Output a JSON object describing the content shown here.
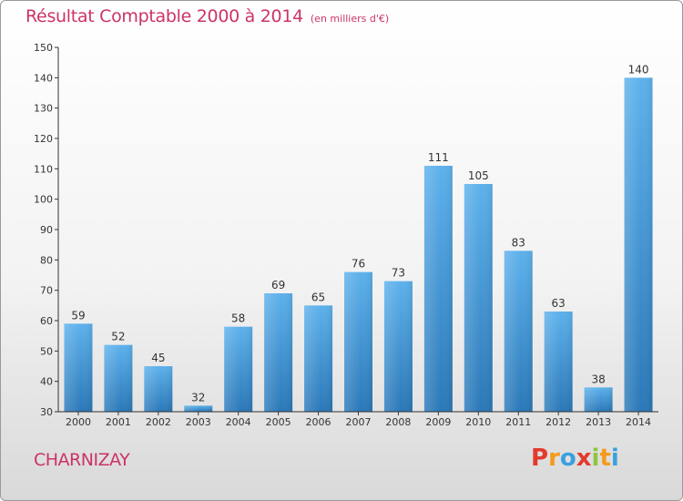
{
  "title": "Résultat Comptable 2000 à 2014",
  "subtitle": "(en milliers d'€)",
  "commune": "CHARNIZAY",
  "logo": {
    "text": "Proxiti",
    "letters": [
      {
        "ch": "P",
        "color": "#e23b2e"
      },
      {
        "ch": "r",
        "color": "#f59a1b"
      },
      {
        "ch": "o",
        "color": "#3aa0e0"
      },
      {
        "ch": "x",
        "color": "#e23b2e"
      },
      {
        "ch": "i",
        "color": "#8cc63f"
      },
      {
        "ch": "t",
        "color": "#f59a1b"
      },
      {
        "ch": "i",
        "color": "#3aa0e0"
      }
    ]
  },
  "colors": {
    "title": "#cc3366",
    "bar_light": "#5db1ec",
    "bar_dark": "#2a78b8",
    "axis": "#333333"
  },
  "chart_data": {
    "type": "bar",
    "categories": [
      "2000",
      "2001",
      "2002",
      "2003",
      "2004",
      "2005",
      "2006",
      "2007",
      "2008",
      "2009",
      "2010",
      "2011",
      "2012",
      "2013",
      "2014"
    ],
    "values": [
      59,
      52,
      45,
      32,
      58,
      69,
      65,
      76,
      73,
      111,
      105,
      83,
      63,
      38,
      140
    ],
    "ylim": [
      30,
      150
    ],
    "yticks": [
      30,
      40,
      50,
      60,
      70,
      80,
      90,
      100,
      110,
      120,
      130,
      140,
      150
    ],
    "grid": false,
    "data_labels": true
  }
}
